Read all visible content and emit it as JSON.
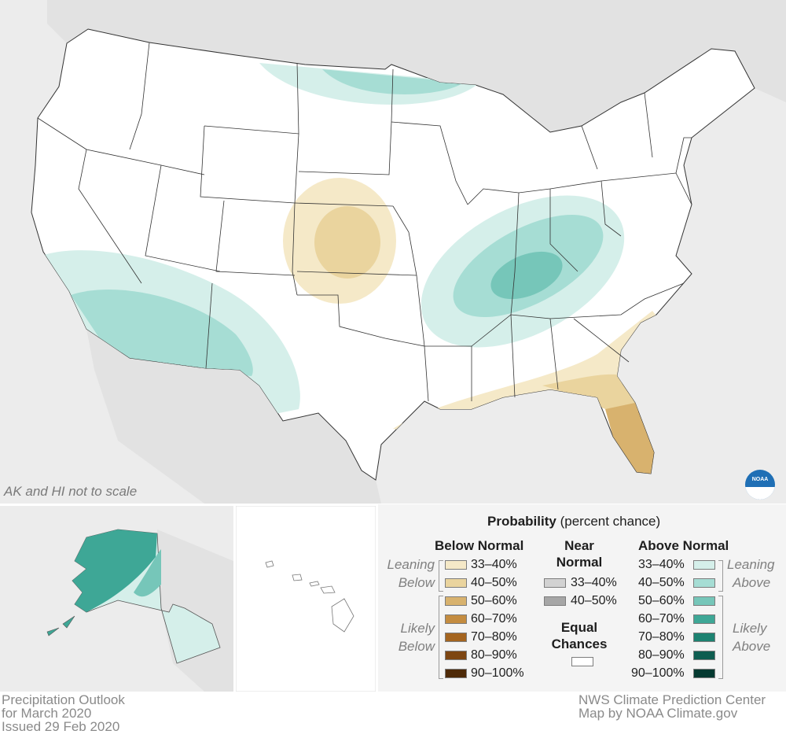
{
  "map": {
    "scale_note": "AK and HI not to scale"
  },
  "footer": {
    "left_lines": [
      "Precipitation Outlook",
      "for March 2020",
      "Issued 29 Feb 2020"
    ],
    "right_lines": [
      "NWS Climate Prediction Center",
      "Map by NOAA Climate.gov"
    ]
  },
  "legend": {
    "title_bold": "Probability",
    "title_rest": "(percent chance)",
    "below_header": "Below Normal",
    "near_header_line1": "Near",
    "near_header_line2": "Normal",
    "above_header": "Above Normal",
    "leaning_below": [
      "Leaning",
      "Below"
    ],
    "likely_below": [
      "Likely",
      "Below"
    ],
    "leaning_above": [
      "Leaning",
      "Above"
    ],
    "likely_above": [
      "Likely",
      "Above"
    ],
    "below_items": [
      {
        "label": "33–40%",
        "color": "#f5e9c8"
      },
      {
        "label": "40–50%",
        "color": "#ead49e"
      },
      {
        "label": "50–60%",
        "color": "#d8b26e"
      },
      {
        "label": "60–70%",
        "color": "#c48c40"
      },
      {
        "label": "70–80%",
        "color": "#a4641f"
      },
      {
        "label": "80–90%",
        "color": "#7d4612"
      },
      {
        "label": "90–100%",
        "color": "#4e2a08"
      }
    ],
    "near_items": [
      {
        "label": "33–40%",
        "color": "#d2d2d2"
      },
      {
        "label": "40–50%",
        "color": "#a6a6a6"
      }
    ],
    "equal_chances_line1": "Equal",
    "equal_chances_line2": "Chances",
    "above_items": [
      {
        "label": "33–40%",
        "color": "#d5efea"
      },
      {
        "label": "40–50%",
        "color": "#a6ddd4"
      },
      {
        "label": "50–60%",
        "color": "#76c6b9"
      },
      {
        "label": "60–70%",
        "color": "#3ea796"
      },
      {
        "label": "70–80%",
        "color": "#1c8271"
      },
      {
        "label": "80–90%",
        "color": "#0e5d50"
      },
      {
        "label": "90–100%",
        "color": "#053a31"
      }
    ]
  },
  "logo": {
    "text": "NOAA"
  }
}
